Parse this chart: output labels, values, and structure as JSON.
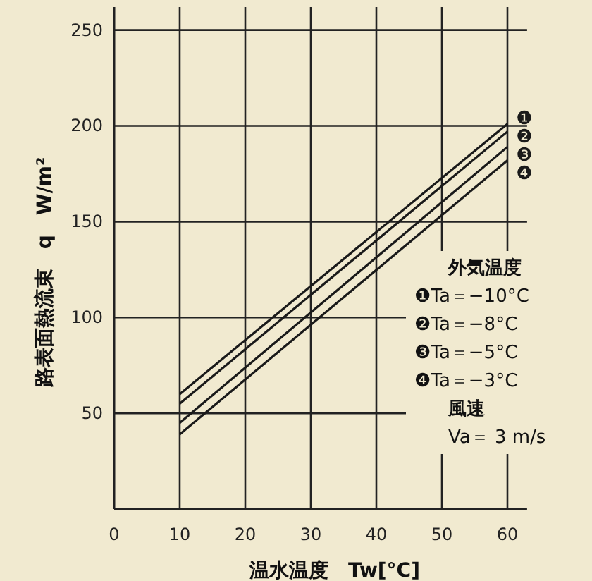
{
  "chart_data": {
    "type": "line",
    "xlabel": "温水温度　Tw[°C]",
    "ylabel": "路表面熱流束　q　W/m²",
    "legend_title": "外気温度",
    "x": [
      10,
      60
    ],
    "series": [
      {
        "name": "❶",
        "color": "#1a1a1a",
        "values": [
          60,
          201
        ]
      },
      {
        "name": "❷",
        "color": "#1a1a1a",
        "values": [
          55,
          197
        ]
      },
      {
        "name": "❸",
        "color": "#1a1a1a",
        "values": [
          45,
          189
        ]
      },
      {
        "name": "❹",
        "color": "#1a1a1a",
        "values": [
          39,
          182
        ]
      }
    ],
    "annotations": [
      "❶Ta＝−10°C",
      "❷Ta＝−8°C",
      "❸Ta＝−5°C",
      "❹Ta＝−3°C",
      "風速",
      "Va＝ 3 m/s"
    ],
    "xlim": [
      0,
      63
    ],
    "ylim": [
      0,
      262
    ],
    "xticks": [
      0,
      10,
      20,
      30,
      40,
      50,
      60
    ],
    "yticks": [
      50,
      100,
      150,
      200,
      250
    ],
    "grid": true,
    "legend": "right",
    "marker": "none",
    "line_style": "solid"
  }
}
